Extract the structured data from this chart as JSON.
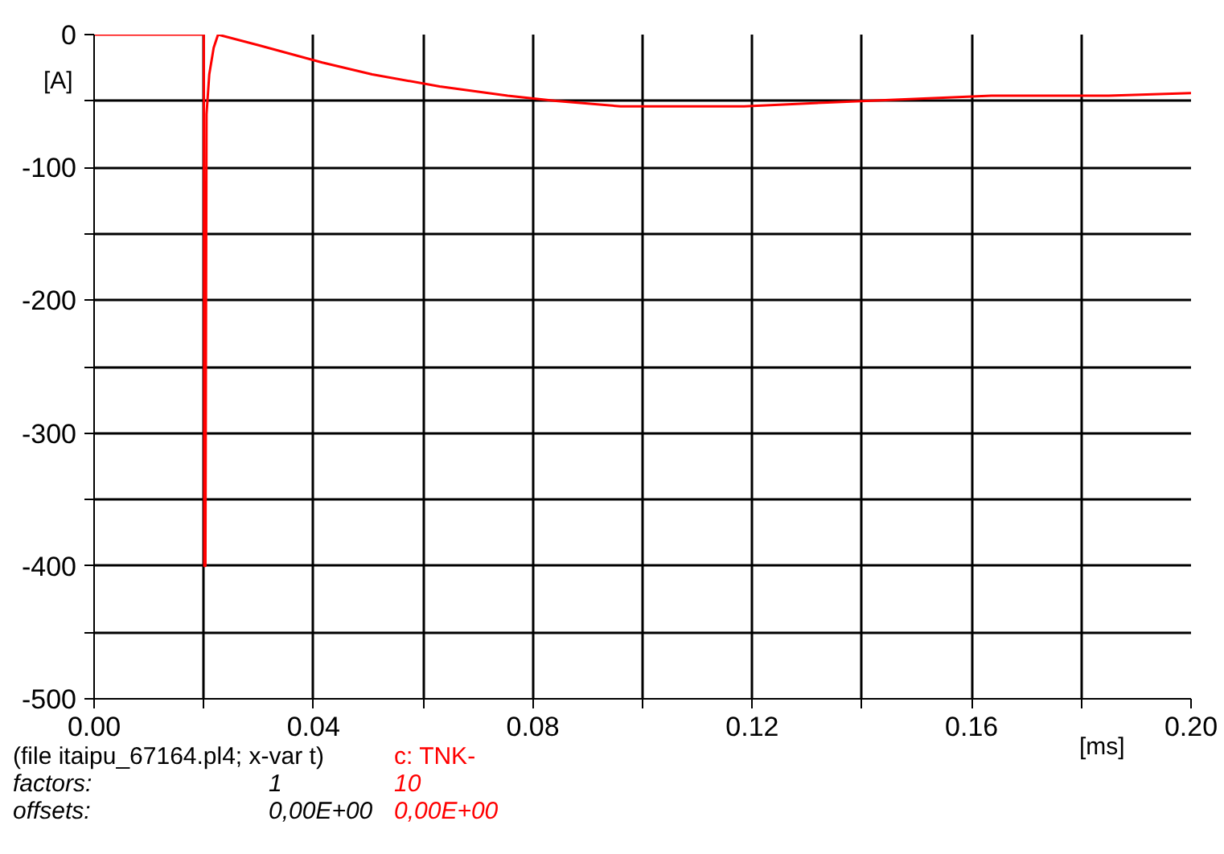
{
  "chart_data": {
    "type": "line",
    "ylabel": "[A]",
    "xlabel": "[ms]",
    "x": [
      0,
      0.02,
      0.0201,
      0.0203,
      0.0205,
      0.021,
      0.0218,
      0.0226,
      0.03,
      0.0416,
      0.0507,
      0.063,
      0.0754,
      0.0842,
      0.096,
      0.1185,
      0.1346,
      0.1636,
      0.185,
      0.2
    ],
    "series": [
      {
        "name": "c:  TNK-",
        "color": "#ff0000",
        "values": [
          0,
          0,
          -400,
          -400,
          -60,
          -30,
          -10,
          0,
          -8,
          -21,
          -30,
          -39,
          -46,
          -50,
          -54,
          -54,
          -51,
          -46,
          -46,
          -44
        ]
      }
    ],
    "xlim": [
      0,
      0.2
    ],
    "ylim": [
      -500,
      0
    ],
    "xticks": [
      {
        "value": 0,
        "label": "0.00"
      },
      {
        "value": 0.02,
        "label": null
      },
      {
        "value": 0.04,
        "label": "0.04"
      },
      {
        "value": 0.06,
        "label": null
      },
      {
        "value": 0.08,
        "label": "0.08"
      },
      {
        "value": 0.1,
        "label": null
      },
      {
        "value": 0.12,
        "label": "0.12"
      },
      {
        "value": 0.14,
        "label": null
      },
      {
        "value": 0.16,
        "label": "0.16"
      },
      {
        "value": 0.18,
        "label": null
      },
      {
        "value": 0.2,
        "label": "0.20"
      }
    ],
    "yticks": [
      -500,
      {
        "value": -450,
        "label": null
      },
      -400,
      {
        "value": -350,
        "label": null
      },
      -300,
      {
        "value": -250,
        "label": null
      },
      -200,
      {
        "value": -150,
        "label": null
      },
      -100,
      {
        "value": -50,
        "label": null
      },
      0
    ],
    "grid": true,
    "legend": "bottom left",
    "annotations": [
      "(file itaipu_67164.pl4; x-var t)",
      "factors:",
      "1",
      "10",
      "offsets:",
      "0,00E+00",
      "0,00E+00"
    ]
  }
}
